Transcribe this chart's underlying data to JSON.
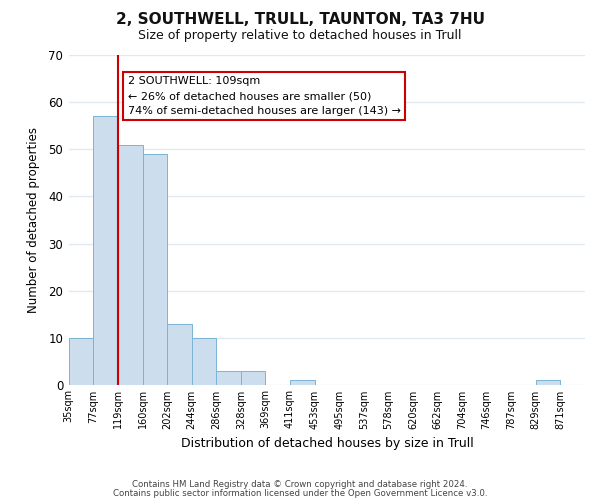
{
  "title": "2, SOUTHWELL, TRULL, TAUNTON, TA3 7HU",
  "subtitle": "Size of property relative to detached houses in Trull",
  "xlabel": "Distribution of detached houses by size in Trull",
  "ylabel": "Number of detached properties",
  "footnote1": "Contains HM Land Registry data © Crown copyright and database right 2024.",
  "footnote2": "Contains public sector information licensed under the Open Government Licence v3.0.",
  "bin_labels": [
    "35sqm",
    "77sqm",
    "119sqm",
    "160sqm",
    "202sqm",
    "244sqm",
    "286sqm",
    "328sqm",
    "369sqm",
    "411sqm",
    "453sqm",
    "495sqm",
    "537sqm",
    "578sqm",
    "620sqm",
    "662sqm",
    "704sqm",
    "746sqm",
    "787sqm",
    "829sqm",
    "871sqm"
  ],
  "bar_heights": [
    10,
    57,
    51,
    49,
    13,
    10,
    3,
    3,
    0,
    1,
    0,
    0,
    0,
    0,
    0,
    0,
    0,
    0,
    0,
    1,
    0
  ],
  "bar_color": "#ccdded",
  "bar_edge_color": "#7ab4d4",
  "vline_color": "#cc0000",
  "vline_index": 2,
  "ylim": [
    0,
    70
  ],
  "yticks": [
    0,
    10,
    20,
    30,
    40,
    50,
    60,
    70
  ],
  "annotation_text": "2 SOUTHWELL: 109sqm\n← 26% of detached houses are smaller (50)\n74% of semi-detached houses are larger (143) →",
  "annotation_box_facecolor": "#ffffff",
  "annotation_box_edgecolor": "#cc0000",
  "background_color": "#ffffff",
  "grid_color": "#e0e8f0",
  "title_fontsize": 11,
  "subtitle_fontsize": 9
}
